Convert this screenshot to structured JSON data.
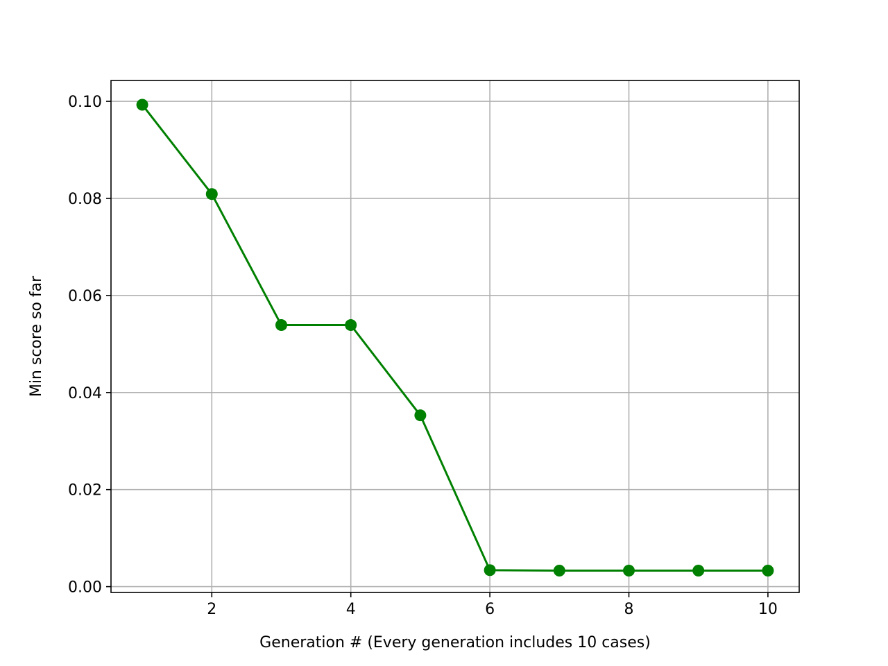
{
  "chart_data": {
    "type": "line",
    "title": "",
    "xlabel": "Generation # (Every generation includes 10 cases)",
    "ylabel": "Min score so far",
    "xlim": [
      0.55,
      10.45
    ],
    "ylim": [
      -0.0012,
      0.1043
    ],
    "grid": true,
    "x_ticks": [
      2,
      4,
      6,
      8,
      10
    ],
    "x_tick_labels": [
      "2",
      "4",
      "6",
      "8",
      "10"
    ],
    "y_ticks": [
      0.0,
      0.02,
      0.04,
      0.06,
      0.08,
      0.1
    ],
    "y_tick_labels": [
      "0.00",
      "0.02",
      "0.04",
      "0.06",
      "0.08",
      "0.10"
    ],
    "series": [
      {
        "color": "#008000",
        "marker": "circle",
        "x": [
          1,
          2,
          3,
          4,
          5,
          6,
          7,
          8,
          9,
          10
        ],
        "y": [
          0.0993,
          0.0809,
          0.0539,
          0.0539,
          0.0353,
          0.0034,
          0.0033,
          0.0033,
          0.0033,
          0.0033
        ]
      }
    ]
  }
}
